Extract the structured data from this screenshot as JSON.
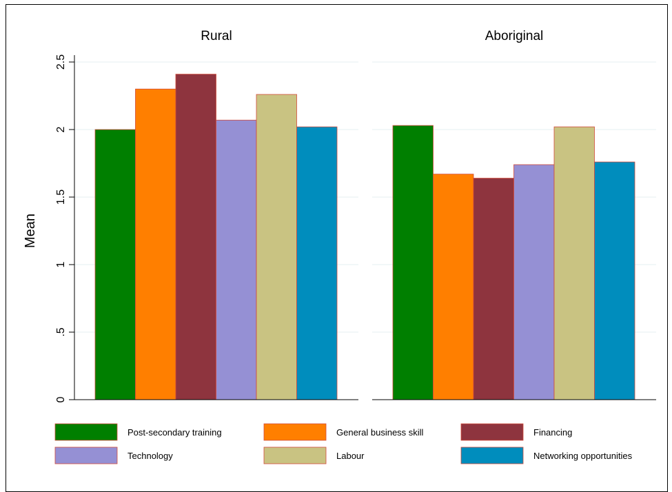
{
  "chart_data": {
    "type": "bar",
    "ylabel": "Mean",
    "ylim": [
      0,
      2.5
    ],
    "yticks": [
      0,
      0.5,
      1,
      1.5,
      2,
      2.5
    ],
    "ytick_labels": [
      "0",
      ".5",
      "1",
      "1.5",
      "2",
      "2.5"
    ],
    "grid": true,
    "legend_placement": "bottom",
    "categories": [
      "Rural",
      "Aboriginal"
    ],
    "series": [
      {
        "name": "Post-secondary training",
        "color": "#007f00",
        "values": [
          2.0,
          2.03
        ]
      },
      {
        "name": "General business skill",
        "color": "#ff7f00",
        "values": [
          2.3,
          1.67
        ]
      },
      {
        "name": "Financing",
        "color": "#8e343e",
        "values": [
          2.41,
          1.64
        ]
      },
      {
        "name": "Technology",
        "color": "#9590d4",
        "values": [
          2.07,
          1.74
        ]
      },
      {
        "name": "Labour",
        "color": "#c9c382",
        "values": [
          2.26,
          2.02
        ]
      },
      {
        "name": "Networking opportunities",
        "color": "#008dbd",
        "values": [
          2.02,
          1.76
        ]
      }
    ]
  }
}
